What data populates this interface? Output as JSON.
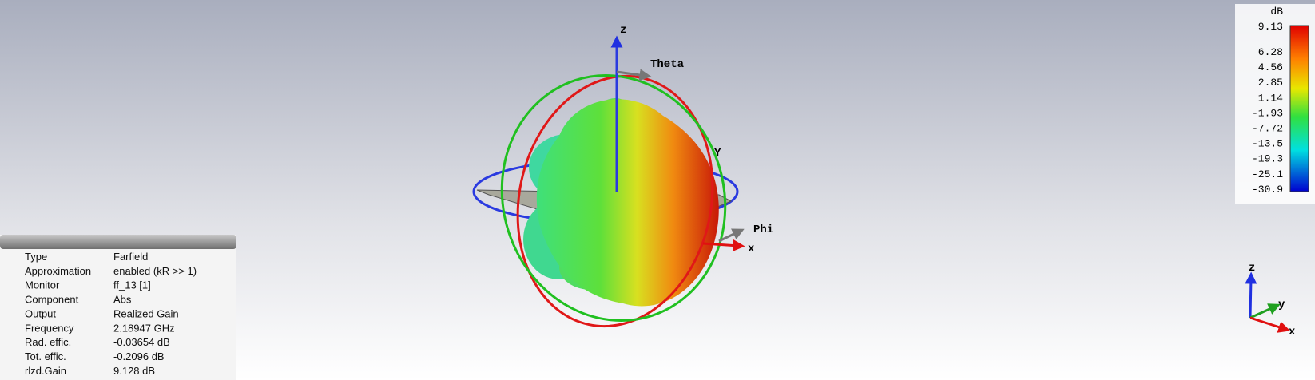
{
  "colorbar": {
    "unit": "dB",
    "ticks": [
      "9.13",
      "6.28",
      "4.56",
      "2.85",
      "1.14",
      "-1.93",
      "-7.72",
      "-13.5",
      "-19.3",
      "-25.1",
      "-30.9"
    ]
  },
  "info": {
    "rows": [
      [
        "Type",
        "Farfield"
      ],
      [
        "Approximation",
        "enabled (kR >> 1)"
      ],
      [
        "Monitor",
        "ff_13 [1]"
      ],
      [
        "Component",
        "Abs"
      ],
      [
        "Output",
        "Realized Gain"
      ],
      [
        "Frequency",
        "2.18947 GHz"
      ],
      [
        "Rad. effic.",
        "-0.03654 dB"
      ],
      [
        "Tot. effic.",
        "-0.2096 dB"
      ],
      [
        "rlzd.Gain",
        "9.128 dB"
      ]
    ]
  },
  "axes": {
    "z": "z",
    "theta": "Theta",
    "y": "Y",
    "phi": "Phi",
    "x": "x"
  },
  "triad": {
    "z": "z",
    "y": "y",
    "x": "x"
  }
}
